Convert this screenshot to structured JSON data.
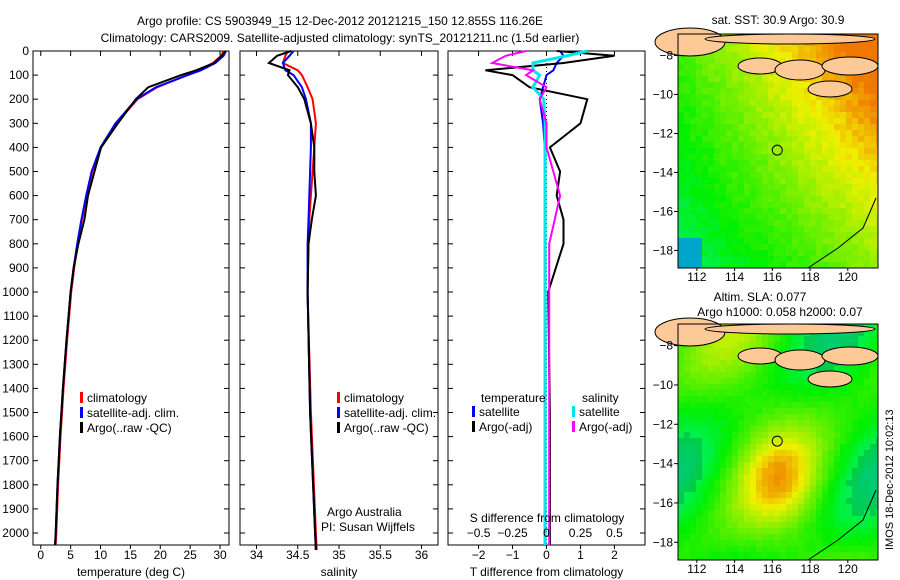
{
  "title": {
    "line1": "Argo profile: CS 5903949_15 12-Dec-2012 20121215_150 12.855S 116.26E",
    "line2": "Climatology: CARS2009. Satellite-adjusted climatology: synTS_20121211.nc (1.5d earlier)"
  },
  "colors": {
    "climatology": "#ff0000",
    "satellite": "#0000ff",
    "argo": "#000000",
    "sal_satellite": "#00e5ee",
    "sal_argo": "#ff00ff"
  },
  "chart_data": [
    {
      "type": "line",
      "xlabel": "temperature (deg C)",
      "ylabel": "",
      "xlim": [
        -1.3,
        31.5
      ],
      "ylim": [
        2120,
        0
      ],
      "xticks": [
        0,
        5,
        10,
        15,
        20,
        25,
        30
      ],
      "yticks": [
        0,
        100,
        200,
        300,
        400,
        500,
        600,
        700,
        800,
        900,
        1000,
        1100,
        1200,
        1300,
        1400,
        1500,
        1600,
        1700,
        1800,
        1900,
        2000
      ],
      "legend": [
        "climatology",
        "satellite-adj. clim.",
        "Argo(..raw -QC)"
      ],
      "depth": [
        0,
        20,
        50,
        80,
        100,
        150,
        200,
        300,
        400,
        500,
        600,
        700,
        800,
        900,
        1000,
        1200,
        1400,
        1600,
        1800,
        2000,
        2050
      ],
      "series": [
        {
          "name": "climatology",
          "values": [
            30.6,
            30.2,
            28.8,
            26.5,
            24.5,
            19.5,
            16.2,
            12.6,
            10.1,
            8.6,
            7.7,
            6.9,
            6.2,
            5.6,
            5.1,
            4.4,
            3.8,
            3.3,
            2.9,
            2.6,
            2.5
          ]
        },
        {
          "name": "satellite-adj. clim.",
          "values": [
            31.0,
            30.6,
            29.2,
            26.8,
            24.6,
            19.3,
            16.0,
            12.5,
            10.0,
            8.5,
            7.6,
            6.8,
            6.1,
            5.5,
            5.0,
            4.3,
            3.7,
            3.2,
            2.8,
            2.5,
            2.4
          ]
        },
        {
          "name": "Argo(..raw -QC)",
          "values": [
            30.9,
            30.3,
            29.0,
            26.0,
            23.5,
            18.0,
            15.9,
            12.9,
            10.1,
            9.0,
            7.9,
            7.3,
            6.3,
            5.5,
            5.0,
            4.3,
            3.7,
            3.2,
            2.8,
            2.5,
            2.4
          ]
        }
      ]
    },
    {
      "type": "line",
      "xlabel": "salinity",
      "xlim": [
        33.8,
        36.2
      ],
      "ylim": [
        2120,
        0
      ],
      "xticks": [
        34,
        34.5,
        35,
        35.5,
        36
      ],
      "legend": [
        "climatology",
        "satellite-adj. clim.",
        "Argo(..raw -QC)"
      ],
      "annotation": [
        "Argo Australia",
        "PI: Susan Wijffels"
      ],
      "depth": [
        0,
        20,
        50,
        80,
        100,
        150,
        200,
        300,
        400,
        500,
        600,
        700,
        800,
        1000,
        1500,
        2000,
        2070
      ],
      "series": [
        {
          "name": "climatology",
          "values": [
            34.38,
            34.35,
            34.32,
            34.5,
            34.55,
            34.62,
            34.68,
            34.72,
            34.7,
            34.68,
            34.66,
            34.64,
            34.63,
            34.62,
            34.66,
            34.72,
            34.73
          ]
        },
        {
          "name": "satellite-adj. clim.",
          "values": [
            34.45,
            34.4,
            34.32,
            34.35,
            34.45,
            34.55,
            34.6,
            34.66,
            34.66,
            34.65,
            34.64,
            34.63,
            34.62,
            34.62,
            34.65,
            34.71,
            34.72
          ]
        },
        {
          "name": "Argo(..raw -QC)",
          "values": [
            34.42,
            34.25,
            34.15,
            34.4,
            34.38,
            34.5,
            34.58,
            34.66,
            34.7,
            34.7,
            34.72,
            34.67,
            34.63,
            34.62,
            34.65,
            34.71,
            34.72
          ]
        }
      ]
    },
    {
      "type": "line",
      "xlabel": "T difference from climatology",
      "x2label": "S difference from climatology",
      "xlim": [
        -2.9,
        2.9
      ],
      "ylim": [
        2120,
        0
      ],
      "xticks": [
        -2,
        -1,
        0,
        1,
        2
      ],
      "x2ticks": [
        -0.5,
        -0.25,
        0,
        0.25,
        0.5
      ],
      "legend_headers": [
        "temperature",
        "salinity"
      ],
      "legend": [
        "satellite",
        "Argo(-adj)",
        "satellite",
        "Argo(-adj)"
      ],
      "depth": [
        0,
        20,
        50,
        80,
        100,
        150,
        200,
        300,
        400,
        500,
        600,
        700,
        800,
        1000,
        1500,
        2000,
        2050
      ],
      "series": [
        {
          "name": "T satellite",
          "values": [
            0.4,
            0.5,
            0.3,
            0.2,
            0.0,
            -0.1,
            -0.2,
            -0.1,
            -0.05,
            -0.05,
            -0.05,
            -0.05,
            -0.05,
            -0.05,
            -0.05,
            -0.05,
            -0.05
          ]
        },
        {
          "name": "T Argo(-adj)",
          "values": [
            0.3,
            2.0,
            0.5,
            -1.8,
            -1.0,
            -0.5,
            1.2,
            1.0,
            0.1,
            0.4,
            0.3,
            0.5,
            0.5,
            0.05,
            0.1,
            0.1,
            0.1
          ]
        },
        {
          "name": "S satellite",
          "values": [
            0.3,
            0.15,
            -0.1,
            -0.1,
            -0.05,
            -0.1,
            -0.02,
            -0.01,
            -0.01,
            -0.01,
            -0.01,
            -0.01,
            -0.01,
            -0.01,
            -0.01,
            -0.01,
            -0.01
          ]
        },
        {
          "name": "S Argo(-adj)",
          "values": [
            -0.15,
            -0.3,
            -0.4,
            -0.1,
            -0.15,
            0.0,
            -0.05,
            0.0,
            0.0,
            0.05,
            0.1,
            0.06,
            0.02,
            0.02,
            0.02,
            0.02,
            0.02
          ]
        }
      ]
    },
    {
      "type": "heatmap",
      "title": "sat. SST: 30.9 Argo: 30.9",
      "xticks": [
        112,
        114,
        116,
        118,
        120
      ],
      "yticks": [
        -8,
        -10,
        -12,
        -14,
        -16,
        -18
      ],
      "marker": [
        116.26,
        -12.855
      ]
    },
    {
      "type": "heatmap",
      "title": "Altim. SLA: 0.077",
      "subtitle": "Argo h1000: 0.058 h2000: 0.07",
      "xticks": [
        112,
        114,
        116,
        118,
        120
      ],
      "yticks": [
        -8,
        -10,
        -12,
        -14,
        -16,
        -18
      ],
      "marker": [
        116.26,
        -12.855
      ]
    }
  ],
  "watermark": "IMOS 18-Dec-2012 10:02:13"
}
